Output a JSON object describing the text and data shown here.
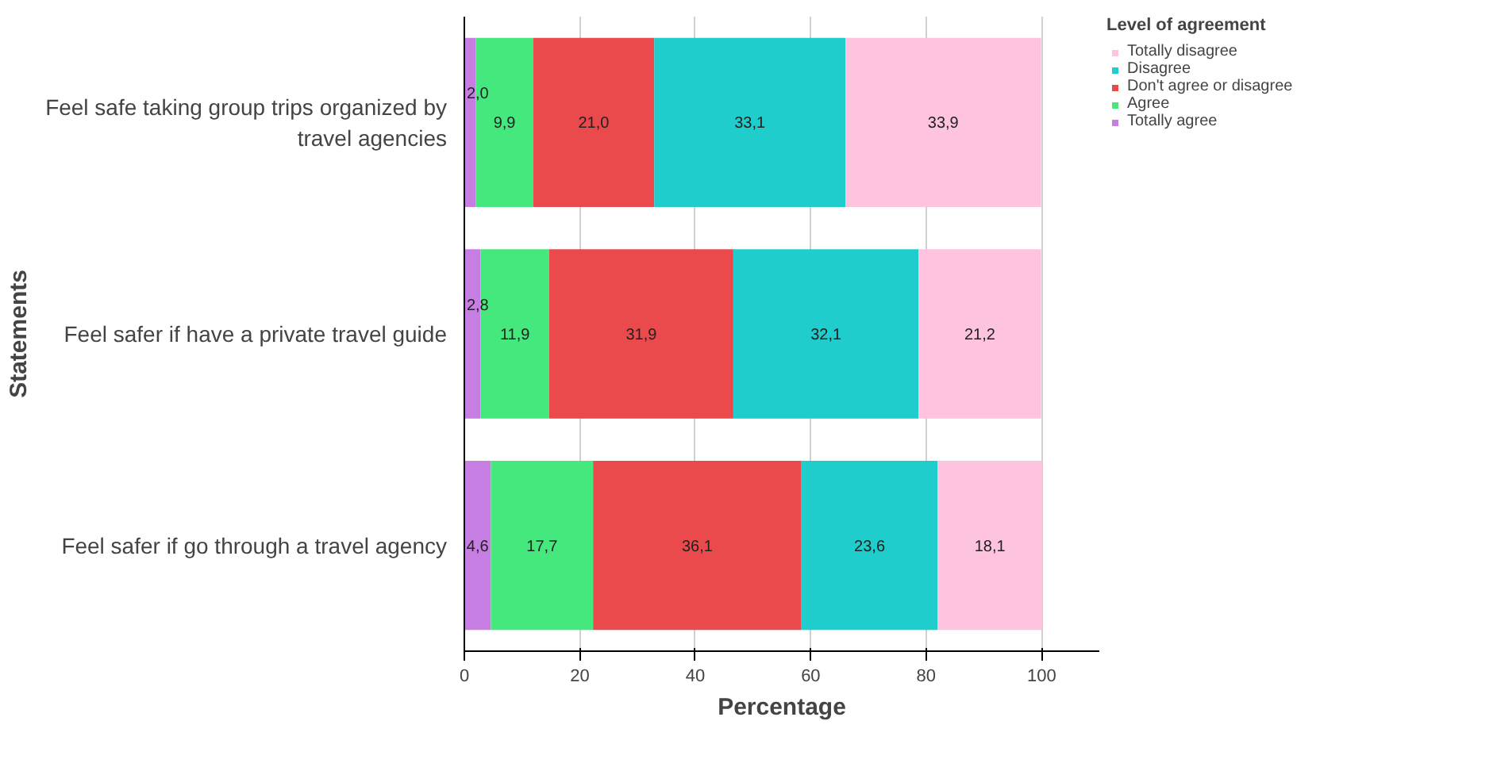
{
  "chart_data": {
    "type": "bar",
    "orientation": "horizontal",
    "stacked": true,
    "xlabel": "Percentage",
    "ylabel": "Statements",
    "legend_title": "Level of agreement",
    "legend": "top right",
    "grid": "x",
    "categories": [
      "Feel safe taking group trips organized by travel agencies",
      "Feel safer if have a private travel guide",
      "Feel safer if go through a travel agency"
    ],
    "xlim": [
      0,
      110
    ],
    "xticks": [
      0,
      20,
      40,
      60,
      80,
      100
    ],
    "series": [
      {
        "name": "Totally agree",
        "color": "#c77ee3",
        "values": [
          2.0,
          2.8,
          4.6
        ],
        "value_labels": [
          "2,0",
          "2,8",
          "4,6"
        ]
      },
      {
        "name": "Agree",
        "color": "#45e87c",
        "values": [
          9.9,
          11.9,
          17.7
        ],
        "value_labels": [
          "9,9",
          "11,9",
          "17,7"
        ]
      },
      {
        "name": "Don't agree or disagree",
        "color": "#ea4a4c",
        "values": [
          21.0,
          31.9,
          36.1
        ],
        "value_labels": [
          "21,0",
          "31,9",
          "36,1"
        ]
      },
      {
        "name": "Disagree",
        "color": "#1ecdcc",
        "values": [
          33.1,
          32.1,
          23.6
        ],
        "value_labels": [
          "33,1",
          "32,1",
          "23,6"
        ]
      },
      {
        "name": "Totally disagree",
        "color": "#fdc3df",
        "values": [
          33.9,
          21.2,
          18.1
        ],
        "value_labels": [
          "33,9",
          "21,2",
          "18,1"
        ]
      }
    ]
  }
}
